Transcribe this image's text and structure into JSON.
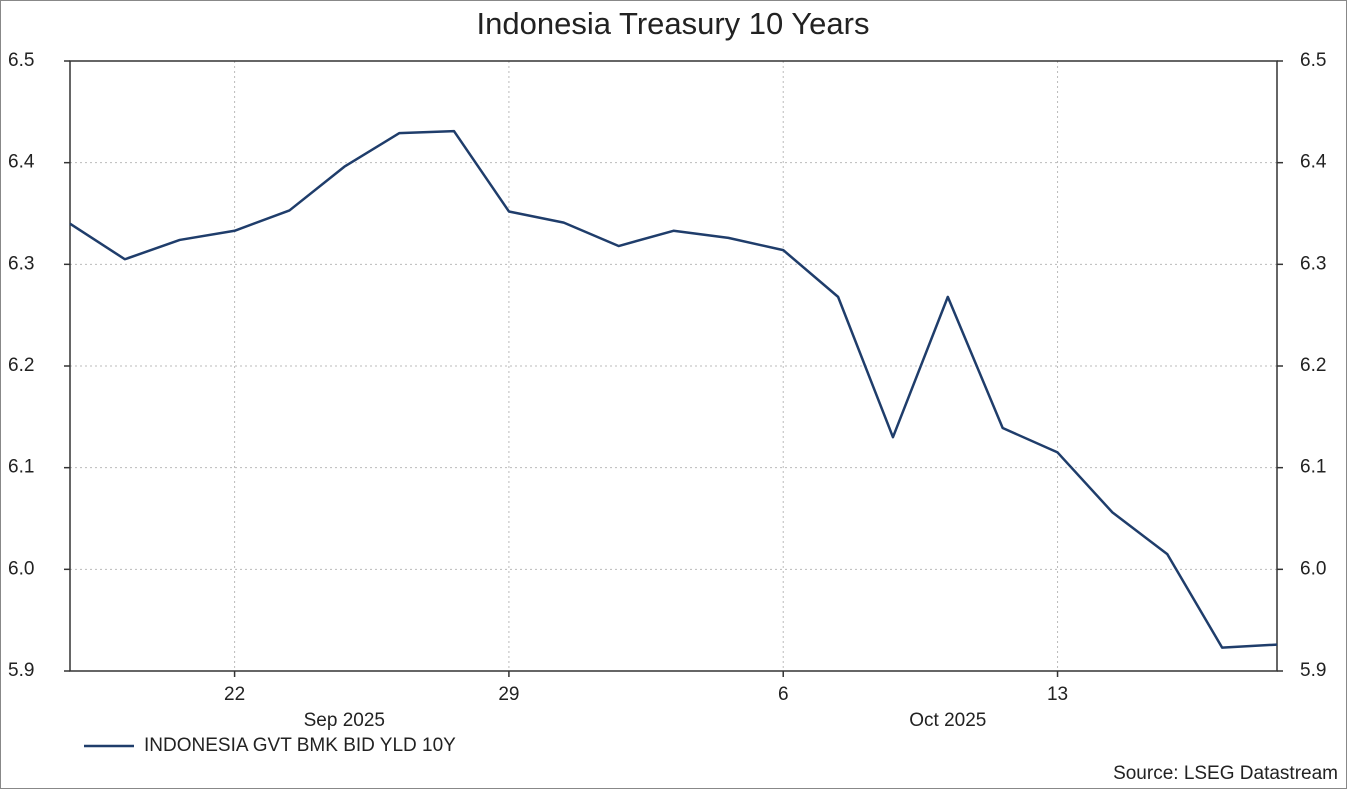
{
  "chart_data": {
    "type": "line",
    "title": "Indonesia Treasury 10 Years",
    "categories": [
      null,
      null,
      null,
      "22",
      null,
      null,
      null,
      null,
      "29",
      null,
      null,
      null,
      null,
      "6",
      null,
      null,
      null,
      null,
      "13",
      null,
      null,
      null,
      null
    ],
    "x_group_labels": [
      "Sep 2025",
      "Oct 2025"
    ],
    "series": [
      {
        "name": "INDONESIA GVT BMK BID YLD 10Y",
        "color": "#1f3d6b",
        "values": [
          6.34,
          6.305,
          6.324,
          6.333,
          6.353,
          6.396,
          6.429,
          6.431,
          6.352,
          6.341,
          6.318,
          6.333,
          6.326,
          6.314,
          6.268,
          6.13,
          6.268,
          6.139,
          6.115,
          6.056,
          6.015,
          5.923,
          5.926
        ]
      }
    ],
    "ylim": [
      5.9,
      6.5
    ],
    "yticks": [
      5.9,
      {
        "value": 6.0,
        "label": "6.0"
      },
      6.1,
      6.2,
      6.3,
      6.4,
      6.5
    ],
    "y2lim": [
      5.9,
      6.5
    ],
    "y2ticks": [
      5.9,
      {
        "value": 6.0,
        "label": "6.0"
      },
      6.1,
      6.2,
      6.3,
      6.4,
      6.5
    ],
    "grid": true,
    "source": "Source: LSEG Datastream"
  }
}
